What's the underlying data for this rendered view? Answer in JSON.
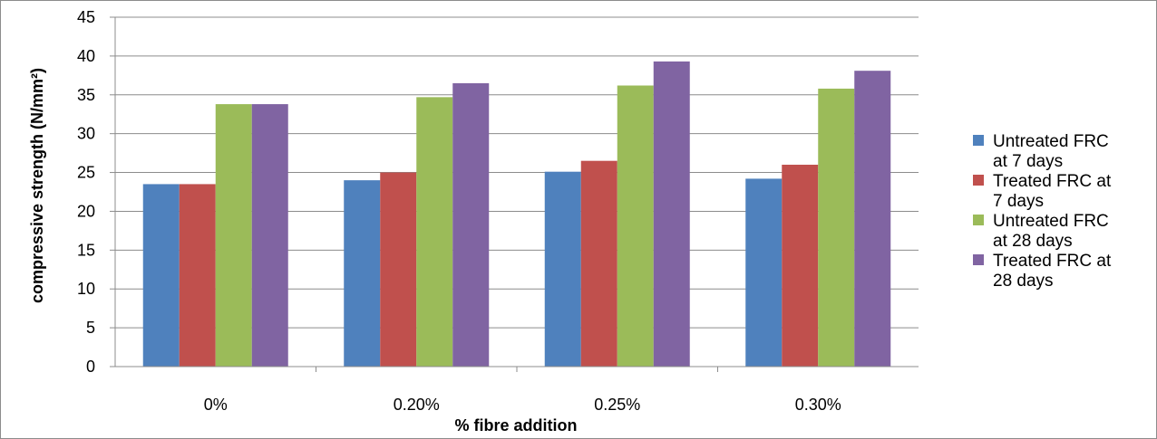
{
  "chart_data": {
    "type": "bar",
    "title": "",
    "xlabel": "% fibre addition",
    "ylabel": "compressive strength (N/mm²)",
    "categories": [
      "0%",
      "0.20%",
      "0.25%",
      "0.30%"
    ],
    "ylim": [
      0,
      45
    ],
    "yticks": [
      0,
      5,
      10,
      15,
      20,
      25,
      30,
      35,
      40,
      45
    ],
    "grid": true,
    "legend_position": "right",
    "series": [
      {
        "name": "Untreated FRC at 7 days",
        "legend_lines": [
          "Untreated FRC",
          "at 7 days"
        ],
        "color": "#4F81BD",
        "values": [
          23.5,
          24.0,
          25.1,
          24.2
        ]
      },
      {
        "name": "Treated FRC at 7 days",
        "legend_lines": [
          "Treated FRC at",
          "7 days"
        ],
        "color": "#C0504D",
        "values": [
          23.5,
          25.0,
          26.5,
          26.0
        ]
      },
      {
        "name": "Untreated FRC at 28 days",
        "legend_lines": [
          "Untreated FRC",
          "at 28 days"
        ],
        "color": "#9BBB59",
        "values": [
          33.8,
          34.7,
          36.2,
          35.8
        ]
      },
      {
        "name": "Treated FRC at 28 days",
        "legend_lines": [
          "Treated FRC at",
          "28 days"
        ],
        "color": "#8064A2",
        "values": [
          33.8,
          36.5,
          39.3,
          38.1
        ]
      }
    ]
  }
}
